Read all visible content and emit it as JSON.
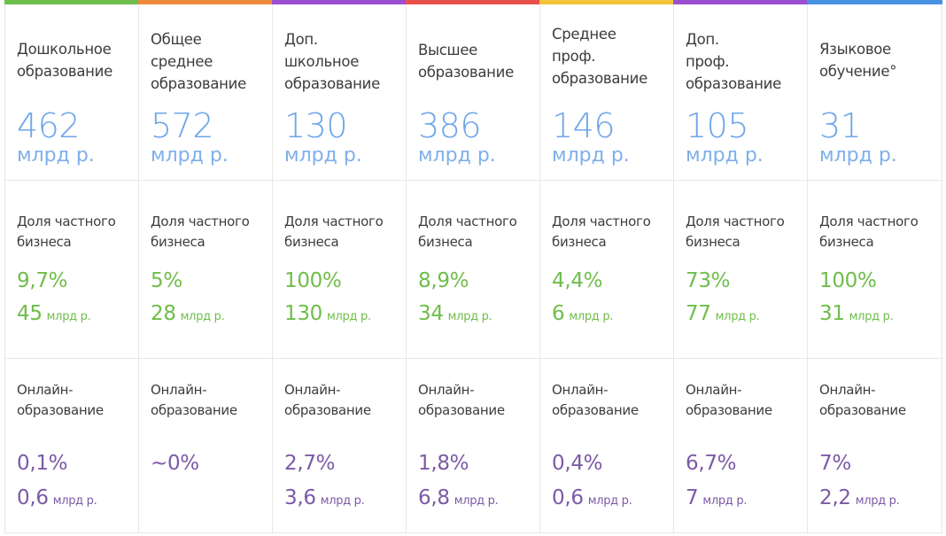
{
  "colors": {
    "column_bars": [
      "#6cbf4b",
      "#ef8a3c",
      "#9b4fd0",
      "#e8504c",
      "#f2c53a",
      "#9b4fd0",
      "#4a90e2"
    ],
    "volume": "#6ea6e8",
    "private_share": "#6fbd4a",
    "online": "#7b5aa6"
  },
  "columns": [
    {
      "title_lines": [
        "Дошкольное",
        "образование"
      ],
      "volume": "462",
      "volume_unit": "млрд р.",
      "private_label_lines": [
        "Доля частного",
        "бизнеса"
      ],
      "private_pct": "9,7%",
      "private_amount": "45",
      "private_unit": "млрд р.",
      "online_label_lines": [
        "Онлайн-",
        "образование"
      ],
      "online_pct": "0,1%",
      "online_amount": "0,6",
      "online_unit": "млрд р."
    },
    {
      "title_lines": [
        "Общее",
        "среднее",
        "образование"
      ],
      "volume": "572",
      "volume_unit": "млрд р.",
      "private_label_lines": [
        "Доля частного",
        "бизнеса"
      ],
      "private_pct": "5%",
      "private_amount": "28",
      "private_unit": "млрд р.",
      "online_label_lines": [
        "Онлайн-",
        "образование"
      ],
      "online_pct": "~0%",
      "online_amount": "",
      "online_unit": ""
    },
    {
      "title_lines": [
        "Доп.",
        "школьное",
        "образование"
      ],
      "volume": "130",
      "volume_unit": "млрд р.",
      "private_label_lines": [
        "Доля частного",
        "бизнеса"
      ],
      "private_pct": "100%",
      "private_amount": "130",
      "private_unit": "млрд р.",
      "online_label_lines": [
        "Онлайн-",
        "образование"
      ],
      "online_pct": "2,7%",
      "online_amount": "3,6",
      "online_unit": "млрд р."
    },
    {
      "title_lines": [
        "Высшее",
        "образование"
      ],
      "volume": "386",
      "volume_unit": "млрд р.",
      "private_label_lines": [
        "Доля частного",
        "бизнеса"
      ],
      "private_pct": "8,9%",
      "private_amount": "34",
      "private_unit": "млрд р.",
      "online_label_lines": [
        "Онлайн-",
        "образование"
      ],
      "online_pct": "1,8%",
      "online_amount": "6,8",
      "online_unit": "млрд р."
    },
    {
      "title_lines": [
        "Среднее",
        "проф.",
        "образование"
      ],
      "volume": "146",
      "volume_unit": "млрд р.",
      "private_label_lines": [
        "Доля частного",
        "бизнеса"
      ],
      "private_pct": "4,4%",
      "private_amount": "6",
      "private_unit": "млрд р.",
      "online_label_lines": [
        "Онлайн-",
        "образование"
      ],
      "online_pct": "0,4%",
      "online_amount": "0,6",
      "online_unit": "млрд р."
    },
    {
      "title_lines": [
        "Доп.",
        "проф.",
        "образование"
      ],
      "volume": "105",
      "volume_unit": "млрд р.",
      "private_label_lines": [
        "Доля частного",
        "бизнеса"
      ],
      "private_pct": "73%",
      "private_amount": "77",
      "private_unit": "млрд р.",
      "online_label_lines": [
        "Онлайн-",
        "образование"
      ],
      "online_pct": "6,7%",
      "online_amount": "7",
      "online_unit": "млрд р."
    },
    {
      "title_lines": [
        "Языковое",
        "обучение°"
      ],
      "volume": "31",
      "volume_unit": "млрд р.",
      "private_label_lines": [
        "Доля частного",
        "бизнеса"
      ],
      "private_pct": "100%",
      "private_amount": "31",
      "private_unit": "млрд р.",
      "online_label_lines": [
        "Онлайн-",
        "образование"
      ],
      "online_pct": "7%",
      "online_amount": "2,2",
      "online_unit": "млрд р."
    }
  ]
}
